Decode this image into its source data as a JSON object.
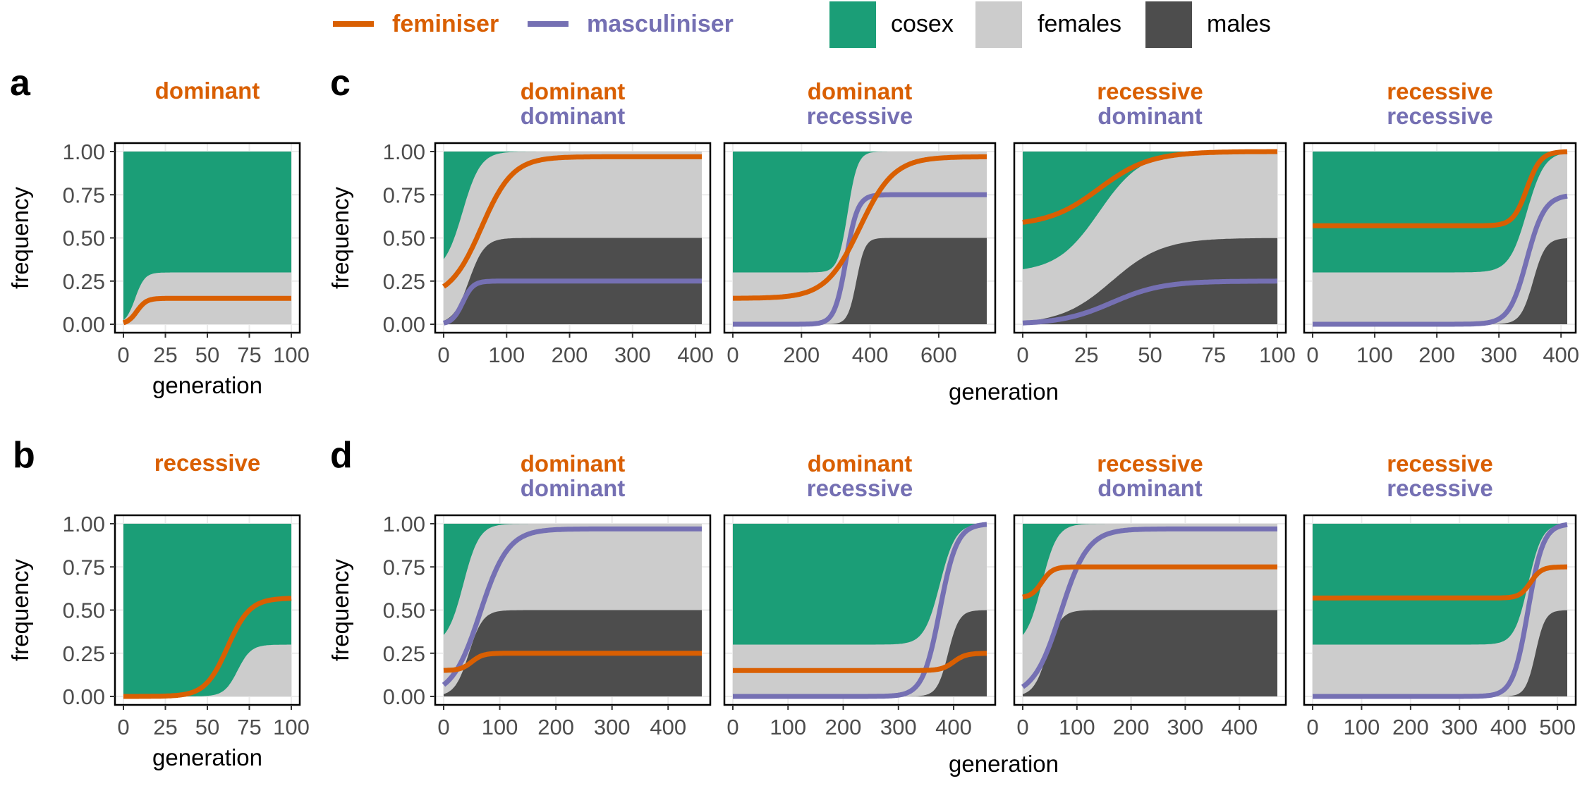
{
  "colors": {
    "feminiser": "#D95F02",
    "masculiniser": "#7570B3",
    "cosex": "#1B9E77",
    "females": "#CCCCCC",
    "males": "#4D4D4D"
  },
  "legend": {
    "feminiser": "feminiser",
    "masculiniser": "masculiniser",
    "cosex": "cosex",
    "females": "females",
    "males": "males"
  },
  "panel_labels": {
    "a": "a",
    "b": "b",
    "c": "c",
    "d": "d"
  },
  "axis": {
    "x": "generation",
    "y": "frequency"
  },
  "chart_data": [
    {
      "id": "a",
      "type": "area",
      "strip_top": "dominant",
      "strip_bottom": "",
      "xlim": [
        0,
        100
      ],
      "xticks": [
        "0",
        "25",
        "50",
        "75",
        "100"
      ],
      "ylim": [
        0,
        1
      ],
      "yticks": [
        "0.00",
        "0.25",
        "0.50",
        "0.75",
        "1.00"
      ],
      "males": {
        "x0": 0,
        "x1": 0,
        "k": 0.1,
        "end": 0
      },
      "cosex_female": {
        "x0": 7,
        "k": 0.35,
        "start": 0,
        "end": 0.3
      },
      "feminiser": {
        "x0": 8,
        "k": 0.35,
        "start": 0,
        "end": 0.15
      }
    },
    {
      "id": "b",
      "type": "area",
      "strip_top": "recessive",
      "strip_bottom": "",
      "xlim": [
        0,
        100
      ],
      "xticks": [
        "0",
        "25",
        "50",
        "75",
        "100"
      ],
      "ylim": [
        0,
        1
      ],
      "yticks": [
        "0.00",
        "0.25",
        "0.50",
        "0.75",
        "1.00"
      ],
      "males": {
        "x0": 0,
        "x1": 0,
        "k": 0.1,
        "end": 0
      },
      "cosex_female": {
        "x0": 68,
        "k": 0.25,
        "start": 0,
        "end": 0.3
      },
      "feminiser": {
        "x0": 62,
        "k": 0.15,
        "start": 0,
        "end": 0.57
      }
    },
    {
      "id": "c1",
      "type": "area",
      "strip_top": "dominant",
      "strip_bottom": "dominant",
      "xlim": [
        0,
        410
      ],
      "xticks": [
        "0",
        "100",
        "200",
        "300",
        "400"
      ],
      "ylim": [
        0,
        1
      ],
      "yticks": [
        "0.00",
        "0.25",
        "0.50",
        "0.75",
        "1.00"
      ],
      "cosex_female": {
        "x0": 30,
        "k": 0.07,
        "start": 0.3,
        "end": 1.0
      },
      "males": {
        "x0": 40,
        "k": 0.08,
        "end": 0.5
      },
      "feminiser": {
        "x0": 60,
        "k": 0.04,
        "start": 0.15,
        "end": 0.97
      },
      "masculiniser": {
        "x0": 30,
        "k": 0.12,
        "start": 0,
        "end": 0.25
      }
    },
    {
      "id": "c2",
      "type": "area",
      "strip_top": "dominant",
      "strip_bottom": "recessive",
      "xlim": [
        0,
        740
      ],
      "xticks": [
        "0",
        "200",
        "400",
        "600"
      ],
      "ylim": [
        0,
        1
      ],
      "yticks": [
        "0.00",
        "0.25",
        "0.50",
        "0.75",
        "1.00"
      ],
      "cosex_female": {
        "x0": 335,
        "k": 0.07,
        "start": 0.3,
        "end": 1.0
      },
      "males": {
        "x0": 360,
        "k": 0.08,
        "end": 0.5
      },
      "feminiser": {
        "x0": 370,
        "k": 0.02,
        "start": 0.15,
        "end": 0.97
      },
      "masculiniser": {
        "x0": 330,
        "k": 0.06,
        "start": 0,
        "end": 0.75
      }
    },
    {
      "id": "c3",
      "type": "area",
      "strip_top": "recessive",
      "strip_bottom": "dominant",
      "xlim": [
        0,
        100
      ],
      "xticks": [
        "0",
        "25",
        "50",
        "75",
        "100"
      ],
      "ylim": [
        0,
        1
      ],
      "yticks": [
        "0.00",
        "0.25",
        "0.50",
        "0.75",
        "1.00"
      ],
      "cosex_female": {
        "x0": 30,
        "k": 0.12,
        "start": 0.3,
        "end": 1.0
      },
      "males": {
        "x0": 35,
        "k": 0.1,
        "end": 0.5
      },
      "feminiser": {
        "x0": 30,
        "k": 0.1,
        "start": 0.57,
        "end": 1.0
      },
      "masculiniser": {
        "x0": 35,
        "k": 0.1,
        "start": 0,
        "end": 0.25
      }
    },
    {
      "id": "c4",
      "type": "area",
      "strip_top": "recessive",
      "strip_bottom": "recessive",
      "xlim": [
        0,
        410
      ],
      "xticks": [
        "0",
        "100",
        "200",
        "300",
        "400"
      ],
      "ylim": [
        0,
        1
      ],
      "yticks": [
        "0.00",
        "0.25",
        "0.50",
        "0.75",
        "1.00"
      ],
      "cosex_female": {
        "x0": 345,
        "k": 0.07,
        "start": 0.3,
        "end": 1.0
      },
      "males": {
        "x0": 355,
        "k": 0.1,
        "end": 0.5
      },
      "feminiser": {
        "x0": 345,
        "k": 0.09,
        "start": 0.57,
        "end": 1.0
      },
      "masculiniser": {
        "x0": 345,
        "k": 0.07,
        "start": 0,
        "end": 0.75
      }
    },
    {
      "id": "d1",
      "type": "area",
      "strip_top": "dominant",
      "strip_bottom": "dominant",
      "xlim": [
        0,
        460
      ],
      "xticks": [
        "0",
        "100",
        "200",
        "300",
        "400"
      ],
      "ylim": [
        0,
        1
      ],
      "yticks": [
        "0.00",
        "0.25",
        "0.50",
        "0.75",
        "1.00"
      ],
      "cosex_female": {
        "x0": 35,
        "k": 0.07,
        "start": 0.3,
        "end": 1.0
      },
      "males": {
        "x0": 45,
        "k": 0.08,
        "end": 0.5
      },
      "feminiser": {
        "x0": 50,
        "k": 0.1,
        "start": 0.15,
        "end": 0.25
      },
      "masculiniser": {
        "x0": 65,
        "k": 0.04,
        "start": 0,
        "end": 0.97
      }
    },
    {
      "id": "d2",
      "type": "area",
      "strip_top": "dominant",
      "strip_bottom": "recessive",
      "xlim": [
        0,
        460
      ],
      "xticks": [
        "0",
        "100",
        "200",
        "300",
        "400"
      ],
      "ylim": [
        0,
        1
      ],
      "yticks": [
        "0.00",
        "0.25",
        "0.50",
        "0.75",
        "1.00"
      ],
      "cosex_female": {
        "x0": 375,
        "k": 0.07,
        "start": 0.3,
        "end": 1.0
      },
      "males": {
        "x0": 390,
        "k": 0.1,
        "end": 0.5
      },
      "feminiser": {
        "x0": 400,
        "k": 0.09,
        "start": 0.15,
        "end": 0.25
      },
      "masculiniser": {
        "x0": 375,
        "k": 0.065,
        "start": 0,
        "end": 1.0
      }
    },
    {
      "id": "d3",
      "type": "area",
      "strip_top": "recessive",
      "strip_bottom": "dominant",
      "xlim": [
        0,
        470
      ],
      "xticks": [
        "0",
        "100",
        "200",
        "300",
        "400"
      ],
      "ylim": [
        0,
        1
      ],
      "yticks": [
        "0.00",
        "0.25",
        "0.50",
        "0.75",
        "1.00"
      ],
      "cosex_female": {
        "x0": 35,
        "k": 0.07,
        "start": 0.3,
        "end": 1.0
      },
      "males": {
        "x0": 45,
        "k": 0.08,
        "end": 0.5
      },
      "feminiser": {
        "x0": 35,
        "k": 0.1,
        "start": 0.57,
        "end": 0.75
      },
      "masculiniser": {
        "x0": 70,
        "k": 0.04,
        "start": 0,
        "end": 0.97
      }
    },
    {
      "id": "d4",
      "type": "area",
      "strip_top": "recessive",
      "strip_bottom": "recessive",
      "xlim": [
        0,
        520
      ],
      "xticks": [
        "0",
        "100",
        "200",
        "300",
        "400",
        "500"
      ],
      "ylim": [
        0,
        1
      ],
      "yticks": [
        "0.00",
        "0.25",
        "0.50",
        "0.75",
        "1.00"
      ],
      "cosex_female": {
        "x0": 440,
        "k": 0.07,
        "start": 0.3,
        "end": 1.0
      },
      "males": {
        "x0": 455,
        "k": 0.1,
        "end": 0.5
      },
      "feminiser": {
        "x0": 445,
        "k": 0.09,
        "start": 0.57,
        "end": 0.75
      },
      "masculiniser": {
        "x0": 440,
        "k": 0.065,
        "start": 0,
        "end": 1.0
      }
    }
  ]
}
